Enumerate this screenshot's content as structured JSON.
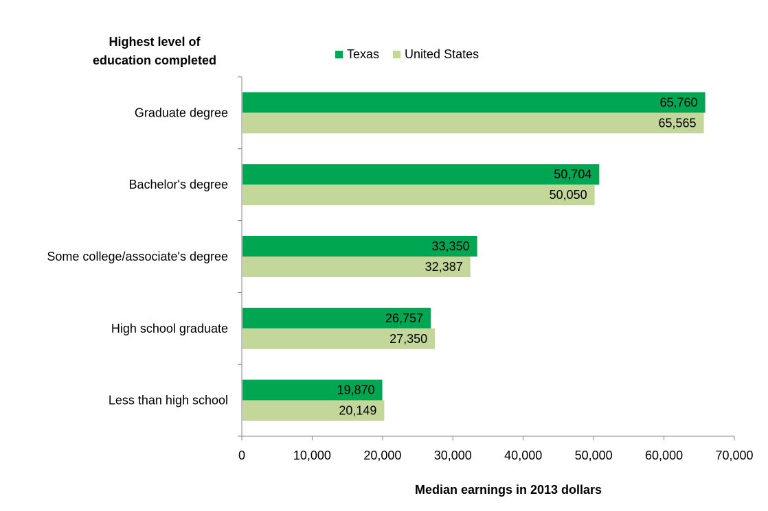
{
  "chart_data": {
    "type": "bar",
    "orientation": "horizontal",
    "title": "",
    "ylabel_lines": [
      "Highest level of",
      "education completed"
    ],
    "xlabel": "Median earnings in 2013 dollars",
    "categories": [
      "Graduate degree",
      "Bachelor's degree",
      "Some college/associate's degree",
      "High school graduate",
      "Less than high school"
    ],
    "series": [
      {
        "name": "Texas",
        "color": "#00a651",
        "values": [
          65760,
          50704,
          33350,
          26757,
          19870
        ],
        "labels": [
          "65,760",
          "50,704",
          "33,350",
          "26,757",
          "19,870"
        ]
      },
      {
        "name": "United States",
        "color": "#c4d79b",
        "values": [
          65565,
          50050,
          32387,
          27350,
          20149
        ],
        "labels": [
          "65,565",
          "50,050",
          "32,387",
          "27,350",
          "20,149"
        ]
      }
    ],
    "xlim": [
      0,
      70000
    ],
    "xticks": [
      0,
      10000,
      20000,
      30000,
      40000,
      50000,
      60000,
      70000
    ],
    "xtick_labels": [
      "0",
      "10,000",
      "20,000",
      "30,000",
      "40,000",
      "50,000",
      "60,000",
      "70,000"
    ],
    "grid": false,
    "legend_position": "top-center"
  }
}
